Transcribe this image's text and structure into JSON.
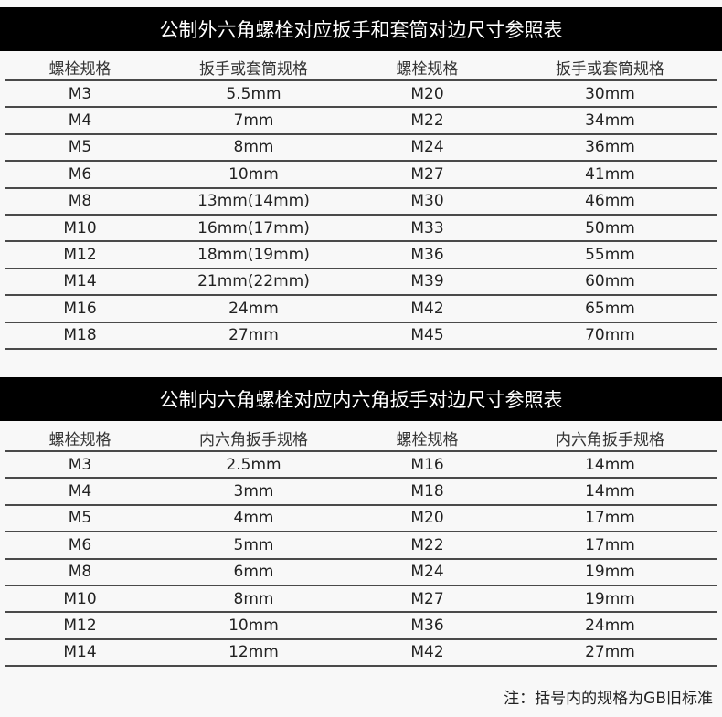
{
  "table1": {
    "title": "公制外六角螺栓对应扳手和套筒对边尺寸参照表",
    "headers": [
      "螺栓规格",
      "扳手或套筒规格",
      "螺栓规格",
      "扳手或套筒规格"
    ],
    "rows": [
      [
        "M3",
        "5.5mm",
        "M20",
        "30mm"
      ],
      [
        "M4",
        "7mm",
        "M22",
        "34mm"
      ],
      [
        "M5",
        "8mm",
        "M24",
        "36mm"
      ],
      [
        "M6",
        "10mm",
        "M27",
        "41mm"
      ],
      [
        "M8",
        "13mm(14mm)",
        "M30",
        "46mm"
      ],
      [
        "M10",
        "16mm(17mm)",
        "M33",
        "50mm"
      ],
      [
        "M12",
        "18mm(19mm)",
        "M36",
        "55mm"
      ],
      [
        "M14",
        "21mm(22mm)",
        "M39",
        "60mm"
      ],
      [
        "M16",
        "24mm",
        "M42",
        "65mm"
      ],
      [
        "M18",
        "27mm",
        "M45",
        "70mm"
      ]
    ]
  },
  "table2": {
    "title": "公制内六角螺栓对应内六角扳手对边尺寸参照表",
    "headers": [
      "螺栓规格",
      "内六角扳手规格",
      "螺栓规格",
      "内六角扳手规格"
    ],
    "rows": [
      [
        "M3",
        "2.5mm",
        "M16",
        "14mm"
      ],
      [
        "M4",
        "3mm",
        "M18",
        "14mm"
      ],
      [
        "M5",
        "4mm",
        "M20",
        "17mm"
      ],
      [
        "M6",
        "5mm",
        "M22",
        "17mm"
      ],
      [
        "M8",
        "6mm",
        "M24",
        "19mm"
      ],
      [
        "M10",
        "8mm",
        "M27",
        "19mm"
      ],
      [
        "M12",
        "10mm",
        "M36",
        "24mm"
      ],
      [
        "M14",
        "12mm",
        "M42",
        "27mm"
      ]
    ]
  },
  "note": "注：括号内的规格为GB旧标准"
}
